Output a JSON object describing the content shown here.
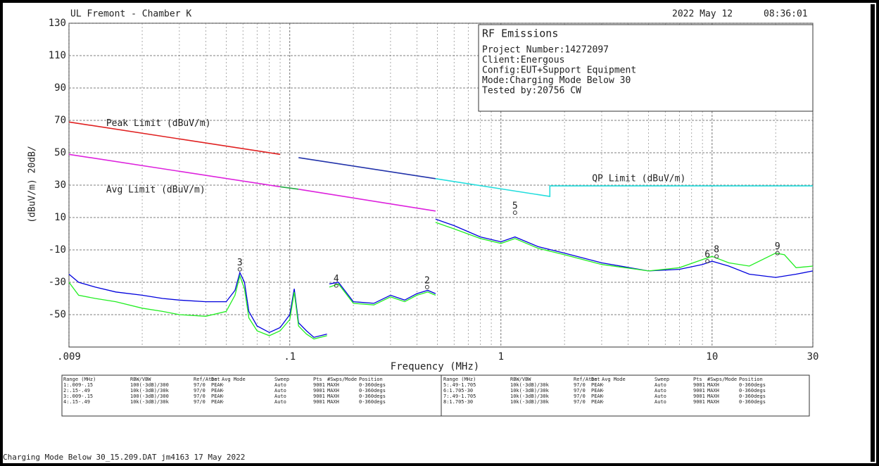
{
  "header": {
    "site": "UL Fremont - Chamber K",
    "date": "2022 May 12",
    "time": "08:36:01"
  },
  "info": {
    "title": "RF Emissions",
    "lines": [
      "Project Number:14272097",
      "Client:Energous",
      "Config:EUT+Support Equipment",
      "Mode:Charging Mode Below 30",
      "Tested by:20756 CW"
    ]
  },
  "chart_data": {
    "type": "line",
    "xlabel": "Frequency (MHz)",
    "ylabel": "(dBuV/m)  20dB/",
    "xscale": "log",
    "grid": true,
    "xlim": [
      0.009,
      30
    ],
    "ylim": [
      -70,
      130
    ],
    "xticks": [
      {
        "value": 0.009,
        "label": ".009"
      },
      {
        "value": 0.1,
        "label": ".1"
      },
      1,
      10,
      30
    ],
    "xminorticks": [
      0.02,
      0.03,
      0.04,
      0.05,
      0.06,
      0.07,
      0.08,
      0.09,
      0.2,
      0.3,
      0.4,
      0.5,
      0.6,
      0.7,
      0.8,
      0.9,
      2,
      3,
      4,
      5,
      6,
      7,
      8,
      9,
      20
    ],
    "yticks": [
      130,
      110,
      90,
      70,
      50,
      30,
      10,
      -10,
      -30,
      -50
    ],
    "annotations": [
      {
        "text": "Peak Limit (dBuV/m)",
        "x": 0.0135,
        "y": 68,
        "color": "#2233cc"
      },
      {
        "text": "Avg Limit (dBuV/m)",
        "x": 0.0135,
        "y": 27,
        "color": "#dd22dd"
      },
      {
        "text": "QP Limit (dBuV/m)",
        "x": 2.7,
        "y": 34,
        "color": "#22dddd"
      }
    ],
    "series": [
      {
        "color": "#e02020",
        "x": [
          0.009,
          0.09
        ],
        "values": [
          69,
          49
        ]
      },
      {
        "color": "#2233aa",
        "x": [
          0.11,
          0.49
        ],
        "values": [
          47,
          34
        ]
      },
      {
        "color": "#22dddd",
        "x": [
          0.49,
          1.705,
          1.705,
          30
        ],
        "values": [
          34,
          23,
          29.5,
          29.5
        ]
      },
      {
        "color": "#dd22dd",
        "x": [
          0.009,
          0.09
        ],
        "values": [
          49,
          29
        ]
      },
      {
        "color": "#22aa44",
        "x": [
          0.09,
          0.11
        ],
        "values": [
          29,
          27.5
        ]
      },
      {
        "color": "#dd22dd",
        "x": [
          0.11,
          0.49
        ],
        "values": [
          27.5,
          14
        ]
      },
      {
        "color": "#0000dd",
        "x": [
          0.009,
          0.01,
          0.012,
          0.015,
          0.02,
          0.025,
          0.03,
          0.04,
          0.05,
          0.055,
          0.058,
          0.061,
          0.064,
          0.07,
          0.08,
          0.09,
          0.1,
          0.105,
          0.11,
          0.12,
          0.13,
          0.15,
          0.155,
          0.154,
          0.17,
          0.2,
          0.25,
          0.3,
          0.35,
          0.4,
          0.45,
          0.49,
          0.495,
          0.49,
          0.6,
          0.8,
          1,
          1.166,
          1.5,
          2,
          3,
          5,
          7,
          9,
          10,
          12,
          15,
          20,
          25,
          30
        ],
        "values": [
          -25,
          -30,
          -33,
          -36,
          -38,
          -40,
          -41,
          -42,
          -42,
          -35,
          -24,
          -30,
          -48,
          -57,
          -61,
          -58,
          -50,
          -34,
          -55,
          -60,
          -64,
          -62,
          null,
          -31,
          -30,
          -42,
          -43,
          -38,
          -41,
          -37,
          -35,
          -37,
          null,
          9,
          5,
          -2,
          -5,
          -2,
          -8,
          -12,
          -18,
          -23,
          -22,
          -19,
          -17,
          -20,
          -25,
          -27,
          -25,
          -23
        ]
      },
      {
        "color": "#22ee22",
        "x": [
          0.009,
          0.01,
          0.012,
          0.015,
          0.02,
          0.025,
          0.03,
          0.04,
          0.05,
          0.055,
          0.058,
          0.061,
          0.064,
          0.07,
          0.08,
          0.09,
          0.1,
          0.105,
          0.11,
          0.12,
          0.13,
          0.15,
          0.155,
          0.154,
          0.17,
          0.2,
          0.25,
          0.3,
          0.35,
          0.4,
          0.45,
          0.49,
          0.495,
          0.49,
          0.6,
          0.8,
          1,
          1.166,
          1.5,
          2,
          3,
          5,
          7,
          9,
          10,
          12,
          15,
          20,
          22,
          25,
          30
        ],
        "values": [
          -30,
          -38,
          -40,
          -42,
          -46,
          -48,
          -50,
          -51,
          -48,
          -38,
          -26,
          -34,
          -52,
          -60,
          -63,
          -60,
          -53,
          -36,
          -57,
          -62,
          -65,
          -63,
          null,
          -33,
          -31,
          -43,
          -44,
          -39,
          -42,
          -38,
          -36,
          -38,
          null,
          7,
          3,
          -3,
          -6,
          -3,
          -9,
          -13,
          -19,
          -23,
          -21,
          -16,
          -14,
          -18,
          -20,
          -12,
          -13,
          -21,
          -20
        ]
      }
    ],
    "markers": [
      {
        "label": "3",
        "x": 0.058,
        "y": -22
      },
      {
        "label": "4",
        "x": 0.166,
        "y": -32
      },
      {
        "label": "2",
        "x": 0.447,
        "y": -33
      },
      {
        "label": "5",
        "x": 1.166,
        "y": 13
      },
      {
        "label": "6",
        "x": 9.5,
        "y": -17
      },
      {
        "label": "8",
        "x": 10.5,
        "y": -14
      },
      {
        "label": "9",
        "x": 20.4,
        "y": -12
      }
    ]
  },
  "table": {
    "headers": [
      "Range (MHz)",
      "RBW/VBW",
      "Ref/Attn",
      "Det",
      "Avg Mode",
      "Sweep",
      "Pts",
      "#Swps/Mode",
      "Position"
    ],
    "rows": [
      [
        "1:.009-.15",
        "100(-3dB)/300",
        "97/0",
        "PEAK",
        "-",
        "Auto",
        "9001",
        "MAXH",
        "0-360degs"
      ],
      [
        "2:.15-.49",
        "10k(-3dB)/30k",
        "97/0",
        "PEAK",
        "-",
        "Auto",
        "9001",
        "MAXH",
        "0-360degs"
      ],
      [
        "3:.009-.15",
        "100(-3dB)/300",
        "97/0",
        "PEAK",
        "-",
        "Auto",
        "9001",
        "MAXH",
        "0-360degs"
      ],
      [
        "4:.15-.49",
        "10k(-3dB)/30k",
        "97/0",
        "PEAK",
        "-",
        "Auto",
        "9001",
        "MAXH",
        "0-360degs"
      ],
      [
        "5:.49-1.705",
        "10k(-3dB)/30k",
        "97/0",
        "PEAK",
        "-",
        "Auto",
        "9001",
        "MAXH",
        "0-360degs"
      ],
      [
        "6:1.705-30",
        "10k(-3dB)/30k",
        "97/0",
        "PEAK",
        "-",
        "Auto",
        "9001",
        "MAXH",
        "0-360degs"
      ],
      [
        "7:.49-1.705",
        "10k(-3dB)/30k",
        "97/0",
        "PEAK",
        "-",
        "Auto",
        "9001",
        "MAXH",
        "0-360degs"
      ],
      [
        "8:1.705-30",
        "10k(-3dB)/30k",
        "97/0",
        "PEAK",
        "-",
        "Auto",
        "9001",
        "MAXH",
        "0-360degs"
      ]
    ],
    "row_colors": [
      "#2233cc",
      "#2233cc",
      "#22cc22",
      "#22cc22",
      "#2233cc",
      "#2233cc",
      "#22cc22",
      "#22cc22"
    ]
  },
  "footer": "Charging Mode Below 30_15.209.DAT jm4163 17 May 2022"
}
